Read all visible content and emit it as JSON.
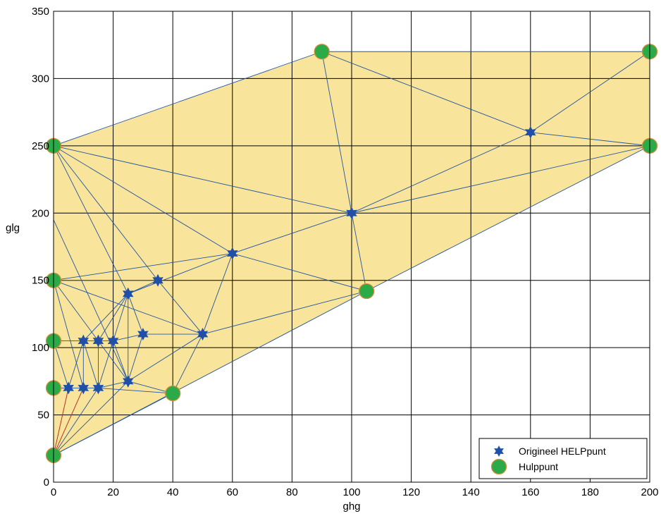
{
  "chart_data": {
    "type": "scatter",
    "title": "",
    "xlabel": "ghg",
    "ylabel": "glg",
    "xlim": [
      0,
      200
    ],
    "ylim": [
      0,
      350
    ],
    "xticks": [
      0,
      20,
      40,
      60,
      80,
      100,
      120,
      140,
      160,
      180,
      200
    ],
    "yticks": [
      0,
      50,
      100,
      150,
      200,
      250,
      300,
      350
    ],
    "grid": true,
    "legend_position": "bottom-right",
    "hull": {
      "fill": "#f8e59b",
      "points": [
        [
          0,
          20
        ],
        [
          40,
          66
        ],
        [
          105,
          142
        ],
        [
          200,
          250
        ],
        [
          200,
          320
        ],
        [
          90,
          320
        ],
        [
          0,
          250
        ]
      ]
    },
    "series": [
      {
        "name": "Origineel HELPpunt",
        "marker": "star",
        "color": "#1f4fa8",
        "points": [
          [
            5,
            70
          ],
          [
            10,
            70
          ],
          [
            15,
            70
          ],
          [
            10,
            105
          ],
          [
            15,
            105
          ],
          [
            20,
            105
          ],
          [
            25,
            75
          ],
          [
            25,
            140
          ],
          [
            30,
            110
          ],
          [
            35,
            150
          ],
          [
            50,
            110
          ],
          [
            60,
            170
          ],
          [
            100,
            200
          ],
          [
            160,
            260
          ]
        ]
      },
      {
        "name": "Hulppunt",
        "marker": "circle",
        "color": "#2bab47",
        "edge_color": "#d98a3a",
        "points": [
          [
            0,
            20
          ],
          [
            0,
            70
          ],
          [
            0,
            105
          ],
          [
            0,
            150
          ],
          [
            0,
            250
          ],
          [
            40,
            66
          ],
          [
            90,
            320
          ],
          [
            105,
            142
          ],
          [
            200,
            250
          ],
          [
            200,
            320
          ]
        ]
      }
    ],
    "edges": {
      "color": "#2455a0",
      "segments": [
        [
          [
            0,
            250
          ],
          [
            90,
            320
          ]
        ],
        [
          [
            90,
            320
          ],
          [
            200,
            320
          ]
        ],
        [
          [
            200,
            320
          ],
          [
            200,
            250
          ]
        ],
        [
          [
            90,
            320
          ],
          [
            160,
            260
          ]
        ],
        [
          [
            90,
            320
          ],
          [
            100,
            200
          ]
        ],
        [
          [
            160,
            260
          ],
          [
            200,
            320
          ]
        ],
        [
          [
            160,
            260
          ],
          [
            200,
            250
          ]
        ],
        [
          [
            160,
            260
          ],
          [
            100,
            200
          ]
        ],
        [
          [
            100,
            200
          ],
          [
            200,
            250
          ]
        ],
        [
          [
            100,
            200
          ],
          [
            0,
            250
          ]
        ],
        [
          [
            100,
            200
          ],
          [
            60,
            170
          ]
        ],
        [
          [
            100,
            200
          ],
          [
            105,
            142
          ]
        ],
        [
          [
            0,
            20
          ],
          [
            105,
            142
          ]
        ],
        [
          [
            105,
            142
          ],
          [
            200,
            250
          ]
        ],
        [
          [
            105,
            142
          ],
          [
            50,
            110
          ]
        ],
        [
          [
            105,
            142
          ],
          [
            60,
            170
          ]
        ],
        [
          [
            0,
            250
          ],
          [
            60,
            170
          ]
        ],
        [
          [
            0,
            250
          ],
          [
            35,
            150
          ]
        ],
        [
          [
            0,
            250
          ],
          [
            0,
            20
          ]
        ],
        [
          [
            0,
            195
          ],
          [
            25,
            75
          ]
        ],
        [
          [
            0,
            250
          ],
          [
            25,
            140
          ]
        ],
        [
          [
            0,
            150
          ],
          [
            60,
            170
          ]
        ],
        [
          [
            0,
            150
          ],
          [
            35,
            150
          ]
        ],
        [
          [
            0,
            150
          ],
          [
            15,
            105
          ]
        ],
        [
          [
            0,
            150
          ],
          [
            10,
            70
          ]
        ],
        [
          [
            0,
            150
          ],
          [
            50,
            110
          ]
        ],
        [
          [
            35,
            150
          ],
          [
            50,
            110
          ]
        ],
        [
          [
            35,
            150
          ],
          [
            25,
            140
          ]
        ],
        [
          [
            60,
            170
          ],
          [
            50,
            110
          ]
        ],
        [
          [
            60,
            170
          ],
          [
            25,
            140
          ]
        ],
        [
          [
            25,
            140
          ],
          [
            10,
            105
          ]
        ],
        [
          [
            25,
            140
          ],
          [
            15,
            105
          ]
        ],
        [
          [
            25,
            140
          ],
          [
            30,
            110
          ]
        ],
        [
          [
            25,
            140
          ],
          [
            25,
            75
          ]
        ],
        [
          [
            25,
            140
          ],
          [
            20,
            105
          ]
        ],
        [
          [
            30,
            110
          ],
          [
            50,
            110
          ]
        ],
        [
          [
            30,
            110
          ],
          [
            25,
            75
          ]
        ],
        [
          [
            30,
            110
          ],
          [
            20,
            105
          ]
        ],
        [
          [
            50,
            110
          ],
          [
            40,
            66
          ]
        ],
        [
          [
            50,
            110
          ],
          [
            25,
            75
          ]
        ],
        [
          [
            0,
            105
          ],
          [
            10,
            105
          ]
        ],
        [
          [
            10,
            105
          ],
          [
            15,
            105
          ]
        ],
        [
          [
            15,
            105
          ],
          [
            20,
            105
          ]
        ],
        [
          [
            10,
            105
          ],
          [
            5,
            70
          ]
        ],
        [
          [
            10,
            105
          ],
          [
            10,
            70
          ]
        ],
        [
          [
            10,
            105
          ],
          [
            15,
            70
          ]
        ],
        [
          [
            15,
            105
          ],
          [
            15,
            70
          ]
        ],
        [
          [
            15,
            105
          ],
          [
            25,
            75
          ]
        ],
        [
          [
            20,
            105
          ],
          [
            25,
            75
          ]
        ],
        [
          [
            20,
            105
          ],
          [
            15,
            70
          ]
        ],
        [
          [
            25,
            75
          ],
          [
            40,
            66
          ]
        ],
        [
          [
            25,
            75
          ],
          [
            15,
            70
          ]
        ],
        [
          [
            15,
            70
          ],
          [
            40,
            66
          ]
        ],
        [
          [
            0,
            20
          ],
          [
            40,
            66
          ]
        ],
        [
          [
            0,
            70
          ],
          [
            5,
            70
          ]
        ],
        [
          [
            5,
            70
          ],
          [
            10,
            70
          ]
        ],
        [
          [
            10,
            70
          ],
          [
            15,
            70
          ]
        ],
        [
          [
            0,
            105
          ],
          [
            5,
            70
          ]
        ],
        [
          [
            0,
            20
          ],
          [
            15,
            70
          ]
        ],
        [
          [
            0,
            20
          ],
          [
            25,
            75
          ]
        ]
      ]
    },
    "red_edges": {
      "color": "#b8322a",
      "segments": [
        [
          [
            0,
            20
          ],
          [
            5,
            70
          ]
        ],
        [
          [
            0,
            20
          ],
          [
            10,
            70
          ]
        ]
      ]
    }
  }
}
